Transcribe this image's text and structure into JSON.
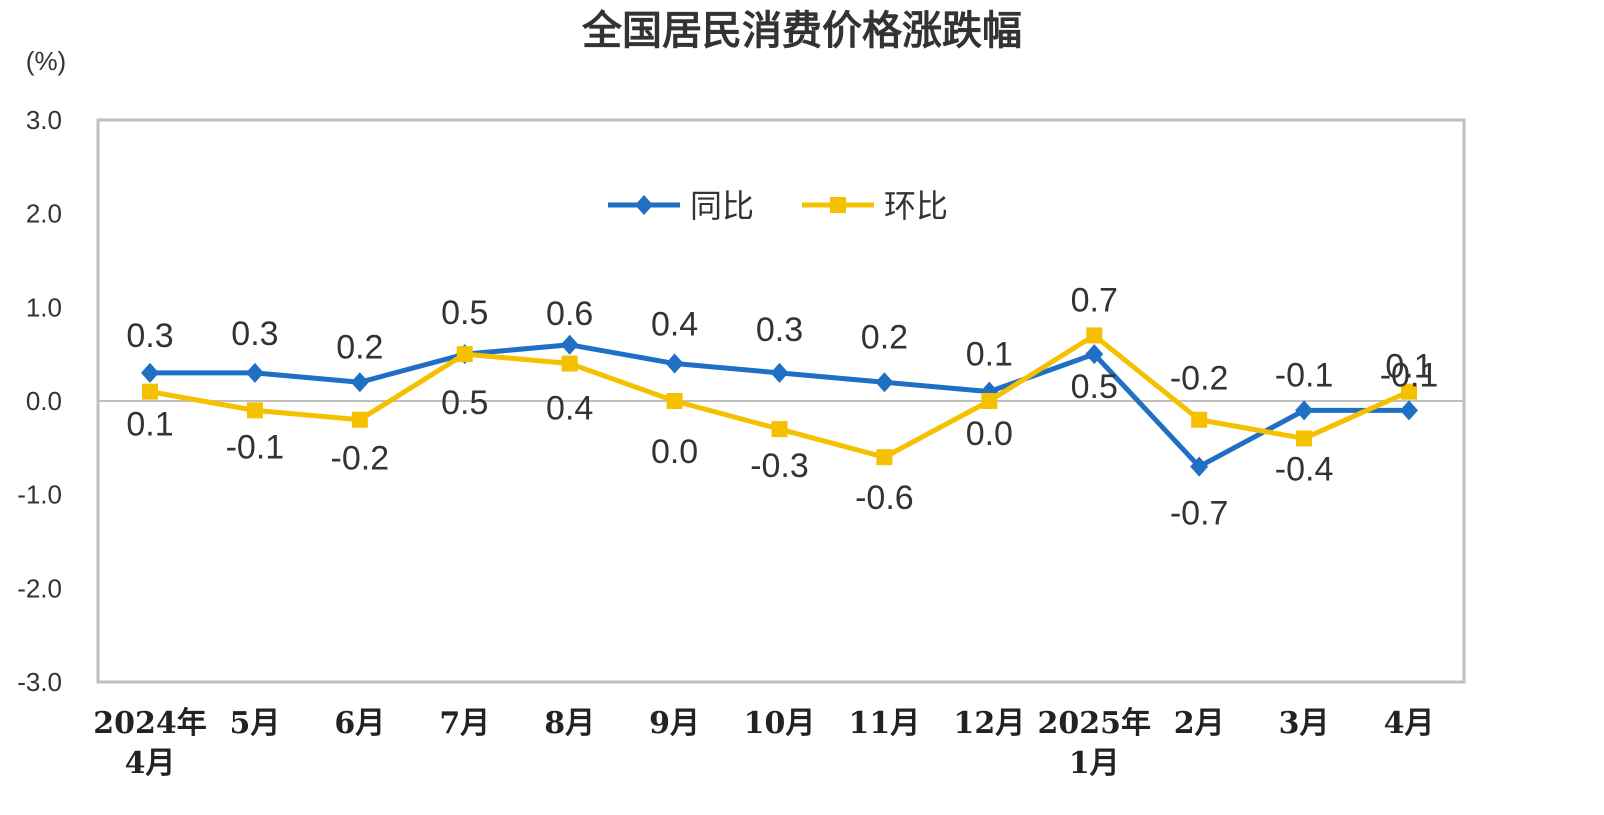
{
  "chart_data": {
    "type": "line",
    "title": "全国居民消费价格涨跌幅",
    "ylabel": "(%)",
    "ylim": [
      -3.0,
      3.0
    ],
    "yticks": [
      "3.0",
      "2.0",
      "1.0",
      "0.0",
      "-1.0",
      "-2.0",
      "-3.0"
    ],
    "ytick_values": [
      3,
      2,
      1,
      0,
      -1,
      -2,
      -3
    ],
    "categories": [
      [
        "2024年",
        "4月"
      ],
      [
        "5月"
      ],
      [
        "6月"
      ],
      [
        "7月"
      ],
      [
        "8月"
      ],
      [
        "9月"
      ],
      [
        "10月"
      ],
      [
        "11月"
      ],
      [
        "12月"
      ],
      [
        "2025年",
        "1月"
      ],
      [
        "2月"
      ],
      [
        "3月"
      ],
      [
        "4月"
      ]
    ],
    "series": [
      {
        "name": "同比",
        "color": "#1f6fc5",
        "marker": "diamond",
        "values": [
          0.3,
          0.3,
          0.2,
          0.5,
          0.6,
          0.4,
          0.3,
          0.2,
          0.1,
          0.5,
          -0.7,
          -0.1,
          -0.1
        ],
        "labels": [
          "0.3",
          "0.3",
          "0.2",
          "0.5",
          "0.6",
          "0.4",
          "0.3",
          "0.2",
          "0.1",
          "0.5",
          "-0.7",
          "-0.1",
          "-0.1"
        ]
      },
      {
        "name": "环比",
        "color": "#f5c000",
        "marker": "square",
        "values": [
          0.1,
          -0.1,
          -0.2,
          0.5,
          0.4,
          0.0,
          -0.3,
          -0.6,
          0.0,
          0.7,
          -0.2,
          -0.4,
          0.1
        ],
        "labels": [
          "0.1",
          "-0.1",
          "-0.2",
          "0.5",
          "0.4",
          "0.0",
          "-0.3",
          "-0.6",
          "0.0",
          "0.7",
          "-0.2",
          "-0.4",
          "0.1"
        ]
      }
    ],
    "grid": false,
    "legend_position": "top-center"
  }
}
